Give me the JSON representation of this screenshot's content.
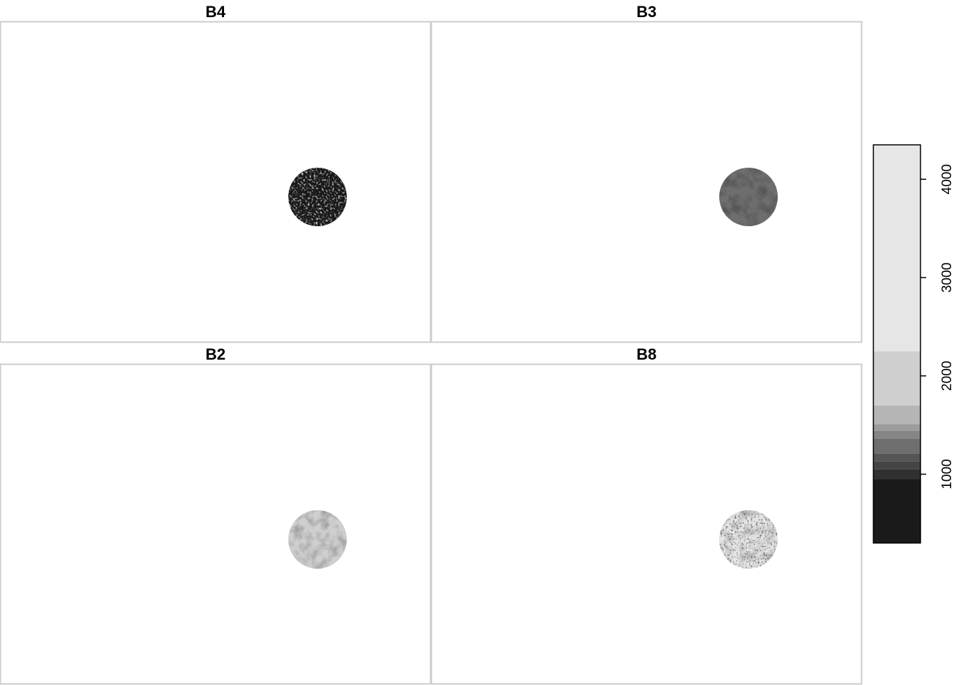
{
  "chart_data": {
    "type": "heatmap",
    "layout": "2x2 small multiples",
    "panels": [
      {
        "title": "B4",
        "mean_value": 450,
        "texture": "speckled"
      },
      {
        "title": "B3",
        "mean_value": 1250,
        "texture": "smooth"
      },
      {
        "title": "B2",
        "mean_value": 1750,
        "texture": "smooth"
      },
      {
        "title": "B8",
        "mean_value": 4000,
        "texture": "speckled"
      }
    ],
    "legend": {
      "placement": "right",
      "range": [
        300,
        4350
      ],
      "ticks": [
        "1000",
        "2000",
        "3000",
        "4000"
      ],
      "tick_values": [
        1000,
        2000,
        3000,
        4000
      ],
      "breaks": [
        {
          "from": 300,
          "to": 950,
          "color": "#1a1a1a"
        },
        {
          "from": 950,
          "to": 1050,
          "color": "#303030"
        },
        {
          "from": 1050,
          "to": 1130,
          "color": "#444444"
        },
        {
          "from": 1130,
          "to": 1210,
          "color": "#555555"
        },
        {
          "from": 1210,
          "to": 1360,
          "color": "#6e6e6e"
        },
        {
          "from": 1360,
          "to": 1440,
          "color": "#858585"
        },
        {
          "from": 1440,
          "to": 1510,
          "color": "#9c9c9c"
        },
        {
          "from": 1510,
          "to": 1700,
          "color": "#b5b5b5"
        },
        {
          "from": 1700,
          "to": 2250,
          "color": "#cfcfcf"
        },
        {
          "from": 2250,
          "to": 4350,
          "color": "#e6e6e6"
        }
      ]
    }
  }
}
